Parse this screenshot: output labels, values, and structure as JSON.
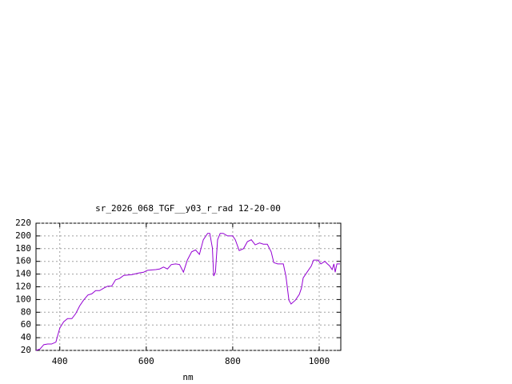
{
  "chart_data": {
    "type": "line",
    "title": "sr_2026_068_TGF__y03_r_rad 12-20-00",
    "xlabel": "nm",
    "x": [
      345,
      354,
      363,
      372,
      381,
      391,
      395,
      400,
      409,
      418,
      428,
      437,
      446,
      455,
      465,
      474,
      483,
      492,
      502,
      511,
      520,
      529,
      538,
      548,
      566,
      585,
      594,
      603,
      622,
      631,
      640,
      649,
      658,
      668,
      677,
      686,
      695,
      705,
      714,
      723,
      732,
      742,
      747,
      753,
      756,
      760,
      765,
      771,
      778,
      788,
      800,
      806,
      815,
      825,
      834,
      843,
      852,
      862,
      871,
      880,
      889,
      895,
      904,
      911,
      917,
      923,
      930,
      935,
      945,
      954,
      959,
      963,
      972,
      982,
      987,
      997,
      1004,
      1013,
      1019,
      1024,
      1030,
      1034,
      1037,
      1041,
      1045,
      1048
    ],
    "series": [
      {
        "name": "sr_2026_068_TGF__y03_r_rad 12-20-00",
        "color": "#9400d3",
        "values": [
          20,
          22,
          29,
          30,
          30,
          33,
          43,
          55,
          65,
          70,
          70,
          78,
          90,
          99,
          107,
          109,
          114,
          114,
          118,
          121,
          121,
          131,
          133,
          138,
          139,
          142,
          143,
          146,
          147,
          148,
          151,
          148,
          155,
          156,
          155,
          143,
          162,
          175,
          178,
          171,
          194,
          204,
          204,
          181,
          137,
          143,
          194,
          204,
          204,
          200,
          200,
          194,
          177,
          180,
          191,
          194,
          186,
          189,
          187,
          187,
          175,
          158,
          156,
          156,
          156,
          137,
          99,
          93,
          99,
          108,
          118,
          134,
          143,
          153,
          162,
          162,
          156,
          160,
          156,
          153,
          147,
          156,
          143,
          156,
          156,
          156
        ]
      }
    ],
    "xlim": [
      345,
      1050
    ],
    "ylim": [
      20,
      220
    ],
    "xticks": [
      400,
      600,
      800,
      1000
    ],
    "yticks": [
      20,
      40,
      60,
      80,
      100,
      120,
      140,
      160,
      180,
      200,
      220
    ],
    "grid": true
  }
}
